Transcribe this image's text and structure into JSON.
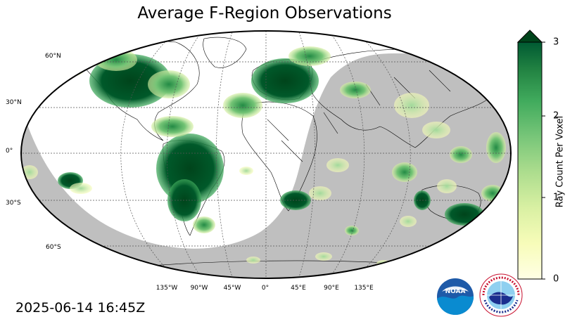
{
  "title": "Average F-Region Observations",
  "timestamp": "2025-06-14 16:45Z",
  "lat_labels": [
    "60°N",
    "30°N",
    "0°",
    "30°S",
    "60°S"
  ],
  "lon_labels": [
    "135°W",
    "90°W",
    "45°W",
    "0°",
    "45°E",
    "90°E",
    "135°E"
  ],
  "colorbar": {
    "label": "Ray Count Per Voxel",
    "ticks": [
      "0",
      "1",
      "2",
      "3"
    ],
    "min": 0,
    "max": 3,
    "extend": "max",
    "colormap": "YlGn"
  },
  "colors": {
    "night_shade": "#bfbfbf",
    "ocean": "#ffffff",
    "grid": "#555555",
    "high": "#00441b",
    "mid": "#41ab5d",
    "low": "#d9f0a3",
    "lowest": "#ffffe5"
  },
  "logos": {
    "noaa_text": "NOAA",
    "nws_text": "NATIONAL WEATHER SERVICE"
  }
}
